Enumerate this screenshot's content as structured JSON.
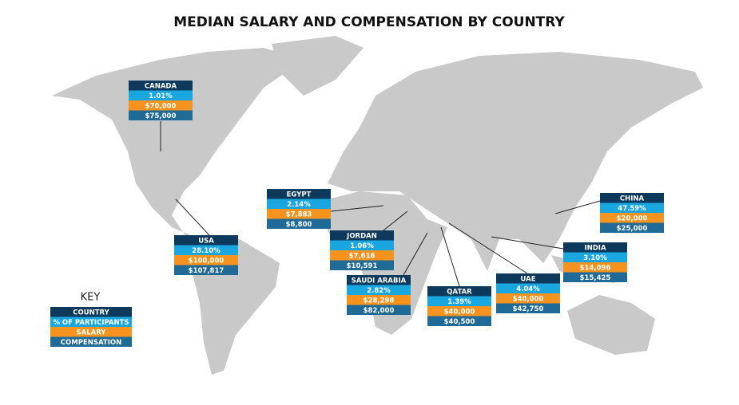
{
  "title": "MEDIAN SALARY AND COMPENSATION BY COUNTRY",
  "key": {
    "heading": "KEY",
    "rows": [
      "COUNTRY",
      "% OF PARTICIPANTS",
      "SALARY",
      "COMPENSATION"
    ]
  },
  "countries": [
    {
      "name": "CANADA",
      "participants": "1.01%",
      "salary": "$70,000",
      "compensation": "$75,000"
    },
    {
      "name": "USA",
      "participants": "28.10%",
      "salary": "$100,000",
      "compensation": "$107,817"
    },
    {
      "name": "EGYPT",
      "participants": "2.14%",
      "salary": "$7,883",
      "compensation": "$8,800"
    },
    {
      "name": "JORDAN",
      "participants": "1.06%",
      "salary": "$7,616",
      "compensation": "$10,591"
    },
    {
      "name": "SAUDI ARABIA",
      "participants": "2.82%",
      "salary": "$28,298",
      "compensation": "$82,000"
    },
    {
      "name": "QATAR",
      "participants": "1.39%",
      "salary": "$40,000",
      "compensation": "$40,500"
    },
    {
      "name": "UAE",
      "participants": "4.04%",
      "salary": "$40,000",
      "compensation": "$42,750"
    },
    {
      "name": "INDIA",
      "participants": "3.10%",
      "salary": "$14,096",
      "compensation": "$15,425"
    },
    {
      "name": "CHINA",
      "participants": "47.59%",
      "salary": "$20,000",
      "compensation": "$25,000"
    }
  ]
}
